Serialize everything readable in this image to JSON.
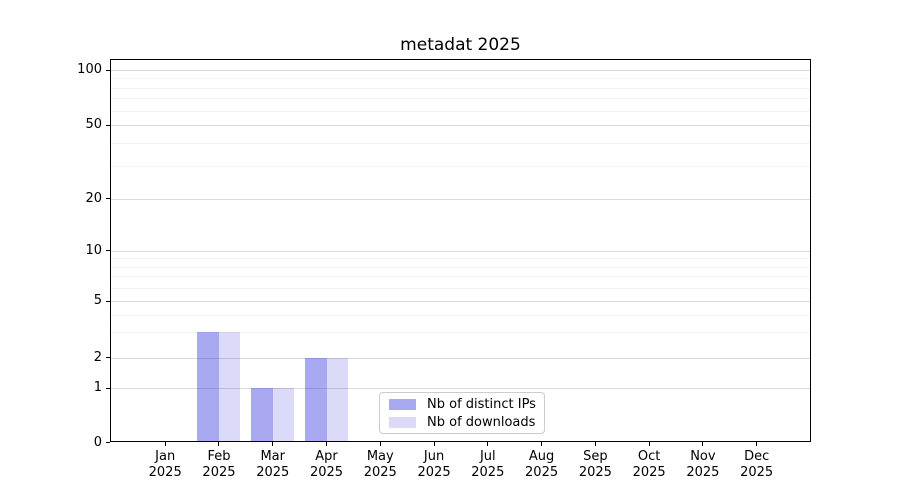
{
  "chart_data": {
    "type": "bar",
    "title": "metadat 2025",
    "categories": [
      "Jan",
      "Feb",
      "Mar",
      "Apr",
      "May",
      "Jun",
      "Jul",
      "Aug",
      "Sep",
      "Oct",
      "Nov",
      "Dec"
    ],
    "category_year": "2025",
    "series": [
      {
        "name": "Nb of distinct IPs",
        "values": [
          0,
          3,
          1,
          2,
          0,
          0,
          0,
          0,
          0,
          0,
          0,
          0
        ],
        "color": "rgba(40,40,220,0.40)"
      },
      {
        "name": "Nb of downloads",
        "values": [
          0,
          3,
          1,
          2,
          0,
          0,
          0,
          0,
          0,
          0,
          0,
          0
        ],
        "color": "rgba(40,40,220,0.17)"
      }
    ],
    "yticks": [
      0,
      1,
      2,
      5,
      10,
      20,
      50,
      100
    ],
    "minor_yticks": [
      3,
      4,
      6,
      7,
      8,
      9,
      30,
      40,
      60,
      70,
      80,
      90
    ],
    "scale": "log1p",
    "ylim": [
      0,
      115
    ],
    "grid": true,
    "legend_position": "lower-center",
    "colors": {
      "axis": "#000000",
      "grid_major": "#d9d9d9",
      "grid_minor": "#f2f2f2",
      "legend_border": "#cccccc"
    }
  }
}
